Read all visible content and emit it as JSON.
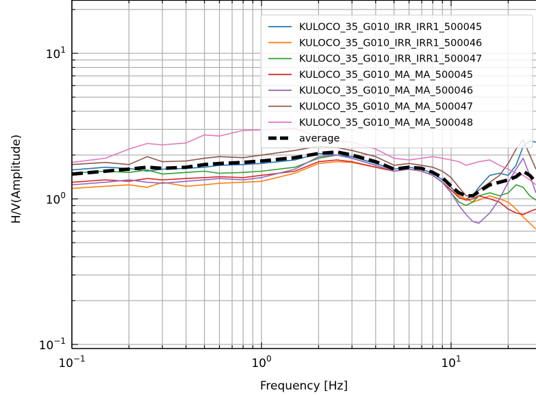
{
  "chart_data": {
    "type": "line",
    "title": "",
    "xlabel": "Frequency [Hz]",
    "ylabel": "H/V(Amplitude)",
    "x_scale": "log",
    "y_scale": "log",
    "xlim": [
      0.1,
      28
    ],
    "ylim": [
      0.1,
      20
    ],
    "grid": true,
    "legend_position": "top-right",
    "x_ticks": [
      {
        "value": 0.1,
        "label_base": "10",
        "label_exp": "−1"
      },
      {
        "value": 1,
        "label_base": "10",
        "label_exp": "0"
      },
      {
        "value": 10,
        "label_base": "10",
        "label_exp": "1"
      }
    ],
    "y_ticks": [
      {
        "value": 0.1,
        "label_base": "10",
        "label_exp": "−1"
      },
      {
        "value": 1,
        "label_base": "10",
        "label_exp": "0"
      },
      {
        "value": 10,
        "label_base": "10",
        "label_exp": "1"
      }
    ],
    "x": [
      0.1,
      0.15,
      0.2,
      0.25,
      0.3,
      0.4,
      0.5,
      0.6,
      0.8,
      1.0,
      1.5,
      2.0,
      2.5,
      3.0,
      4.0,
      5.0,
      6.0,
      7.0,
      8.0,
      9.0,
      10.0,
      11.0,
      12.0,
      13.0,
      14.0,
      16.0,
      18.0,
      20.0,
      22.0,
      24.0,
      26.0,
      28.0
    ],
    "series": [
      {
        "name": "KULOCO_35_G010_IRR_IRR1_500045",
        "color": "#1f77b4",
        "values": [
          1.58,
          1.65,
          1.62,
          1.55,
          1.6,
          1.62,
          1.65,
          1.7,
          1.72,
          1.75,
          1.85,
          2.05,
          2.0,
          1.95,
          1.75,
          1.6,
          1.65,
          1.6,
          1.5,
          1.35,
          1.2,
          1.05,
          1.0,
          1.05,
          1.2,
          1.45,
          1.5,
          1.45,
          1.7,
          2.3,
          2.5,
          2.45
        ]
      },
      {
        "name": "KULOCO_35_G010_IRR_IRR1_500046",
        "color": "#ff7f0e",
        "values": [
          1.18,
          1.22,
          1.25,
          1.2,
          1.3,
          1.22,
          1.25,
          1.28,
          1.3,
          1.32,
          1.5,
          1.75,
          1.8,
          1.78,
          1.65,
          1.55,
          1.6,
          1.55,
          1.45,
          1.3,
          1.15,
          1.05,
          1.0,
          0.95,
          0.98,
          1.05,
          1.0,
          0.95,
          0.85,
          0.75,
          0.68,
          0.62
        ]
      },
      {
        "name": "KULOCO_35_G010_IRR_IRR1_500047",
        "color": "#2ca02c",
        "values": [
          1.5,
          1.55,
          1.52,
          1.58,
          1.48,
          1.52,
          1.55,
          1.5,
          1.52,
          1.55,
          1.65,
          1.9,
          2.0,
          1.9,
          1.7,
          1.55,
          1.6,
          1.55,
          1.45,
          1.3,
          1.1,
          0.95,
          0.9,
          0.95,
          1.05,
          1.1,
          1.05,
          1.1,
          1.25,
          1.2,
          1.05,
          0.98
        ]
      },
      {
        "name": "KULOCO_35_G010_MA_MA_500045",
        "color": "#d62728",
        "values": [
          1.3,
          1.35,
          1.32,
          1.38,
          1.35,
          1.38,
          1.4,
          1.42,
          1.4,
          1.45,
          1.55,
          1.8,
          1.85,
          1.8,
          1.65,
          1.55,
          1.6,
          1.55,
          1.45,
          1.3,
          1.15,
          1.02,
          0.98,
          1.0,
          1.05,
          1.0,
          0.95,
          0.85,
          0.8,
          0.78,
          0.82,
          0.85
        ]
      },
      {
        "name": "KULOCO_35_G010_MA_MA_500046",
        "color": "#9467bd",
        "values": [
          1.25,
          1.3,
          1.35,
          1.3,
          1.28,
          1.32,
          1.35,
          1.38,
          1.35,
          1.4,
          1.6,
          1.95,
          2.0,
          1.9,
          1.7,
          1.55,
          1.6,
          1.55,
          1.45,
          1.3,
          1.1,
          0.9,
          0.78,
          0.7,
          0.68,
          0.8,
          1.0,
          1.3,
          1.6,
          1.9,
          1.45,
          1.1
        ]
      },
      {
        "name": "KULOCO_35_G010_MA_MA_500047",
        "color": "#8c564b",
        "values": [
          1.72,
          1.78,
          1.72,
          1.95,
          1.8,
          1.82,
          1.9,
          1.95,
          1.92,
          2.0,
          2.15,
          2.3,
          2.25,
          2.15,
          1.95,
          1.7,
          1.75,
          1.7,
          1.65,
          1.55,
          1.4,
          1.2,
          1.05,
          1.05,
          1.15,
          1.3,
          1.45,
          1.75,
          2.2,
          2.55,
          2.0,
          1.6
        ]
      },
      {
        "name": "KULOCO_35_G010_MA_MA_500048",
        "color": "#e377c2",
        "values": [
          1.78,
          1.9,
          2.2,
          2.4,
          2.35,
          2.42,
          2.75,
          2.7,
          2.95,
          2.98,
          3.05,
          2.65,
          2.5,
          2.45,
          2.2,
          1.9,
          1.85,
          1.9,
          1.95,
          1.9,
          1.85,
          1.8,
          1.7,
          1.75,
          1.8,
          1.85,
          1.7,
          1.6,
          1.5,
          1.45,
          1.35,
          1.25
        ]
      },
      {
        "name": "average",
        "color": "#000000",
        "dashed": true,
        "values": [
          1.48,
          1.55,
          1.6,
          1.65,
          1.62,
          1.65,
          1.72,
          1.75,
          1.78,
          1.82,
          1.92,
          2.05,
          2.1,
          2.0,
          1.8,
          1.6,
          1.65,
          1.62,
          1.52,
          1.4,
          1.22,
          1.1,
          1.05,
          1.05,
          1.12,
          1.25,
          1.3,
          1.35,
          1.42,
          1.55,
          1.45,
          1.3
        ]
      }
    ]
  }
}
